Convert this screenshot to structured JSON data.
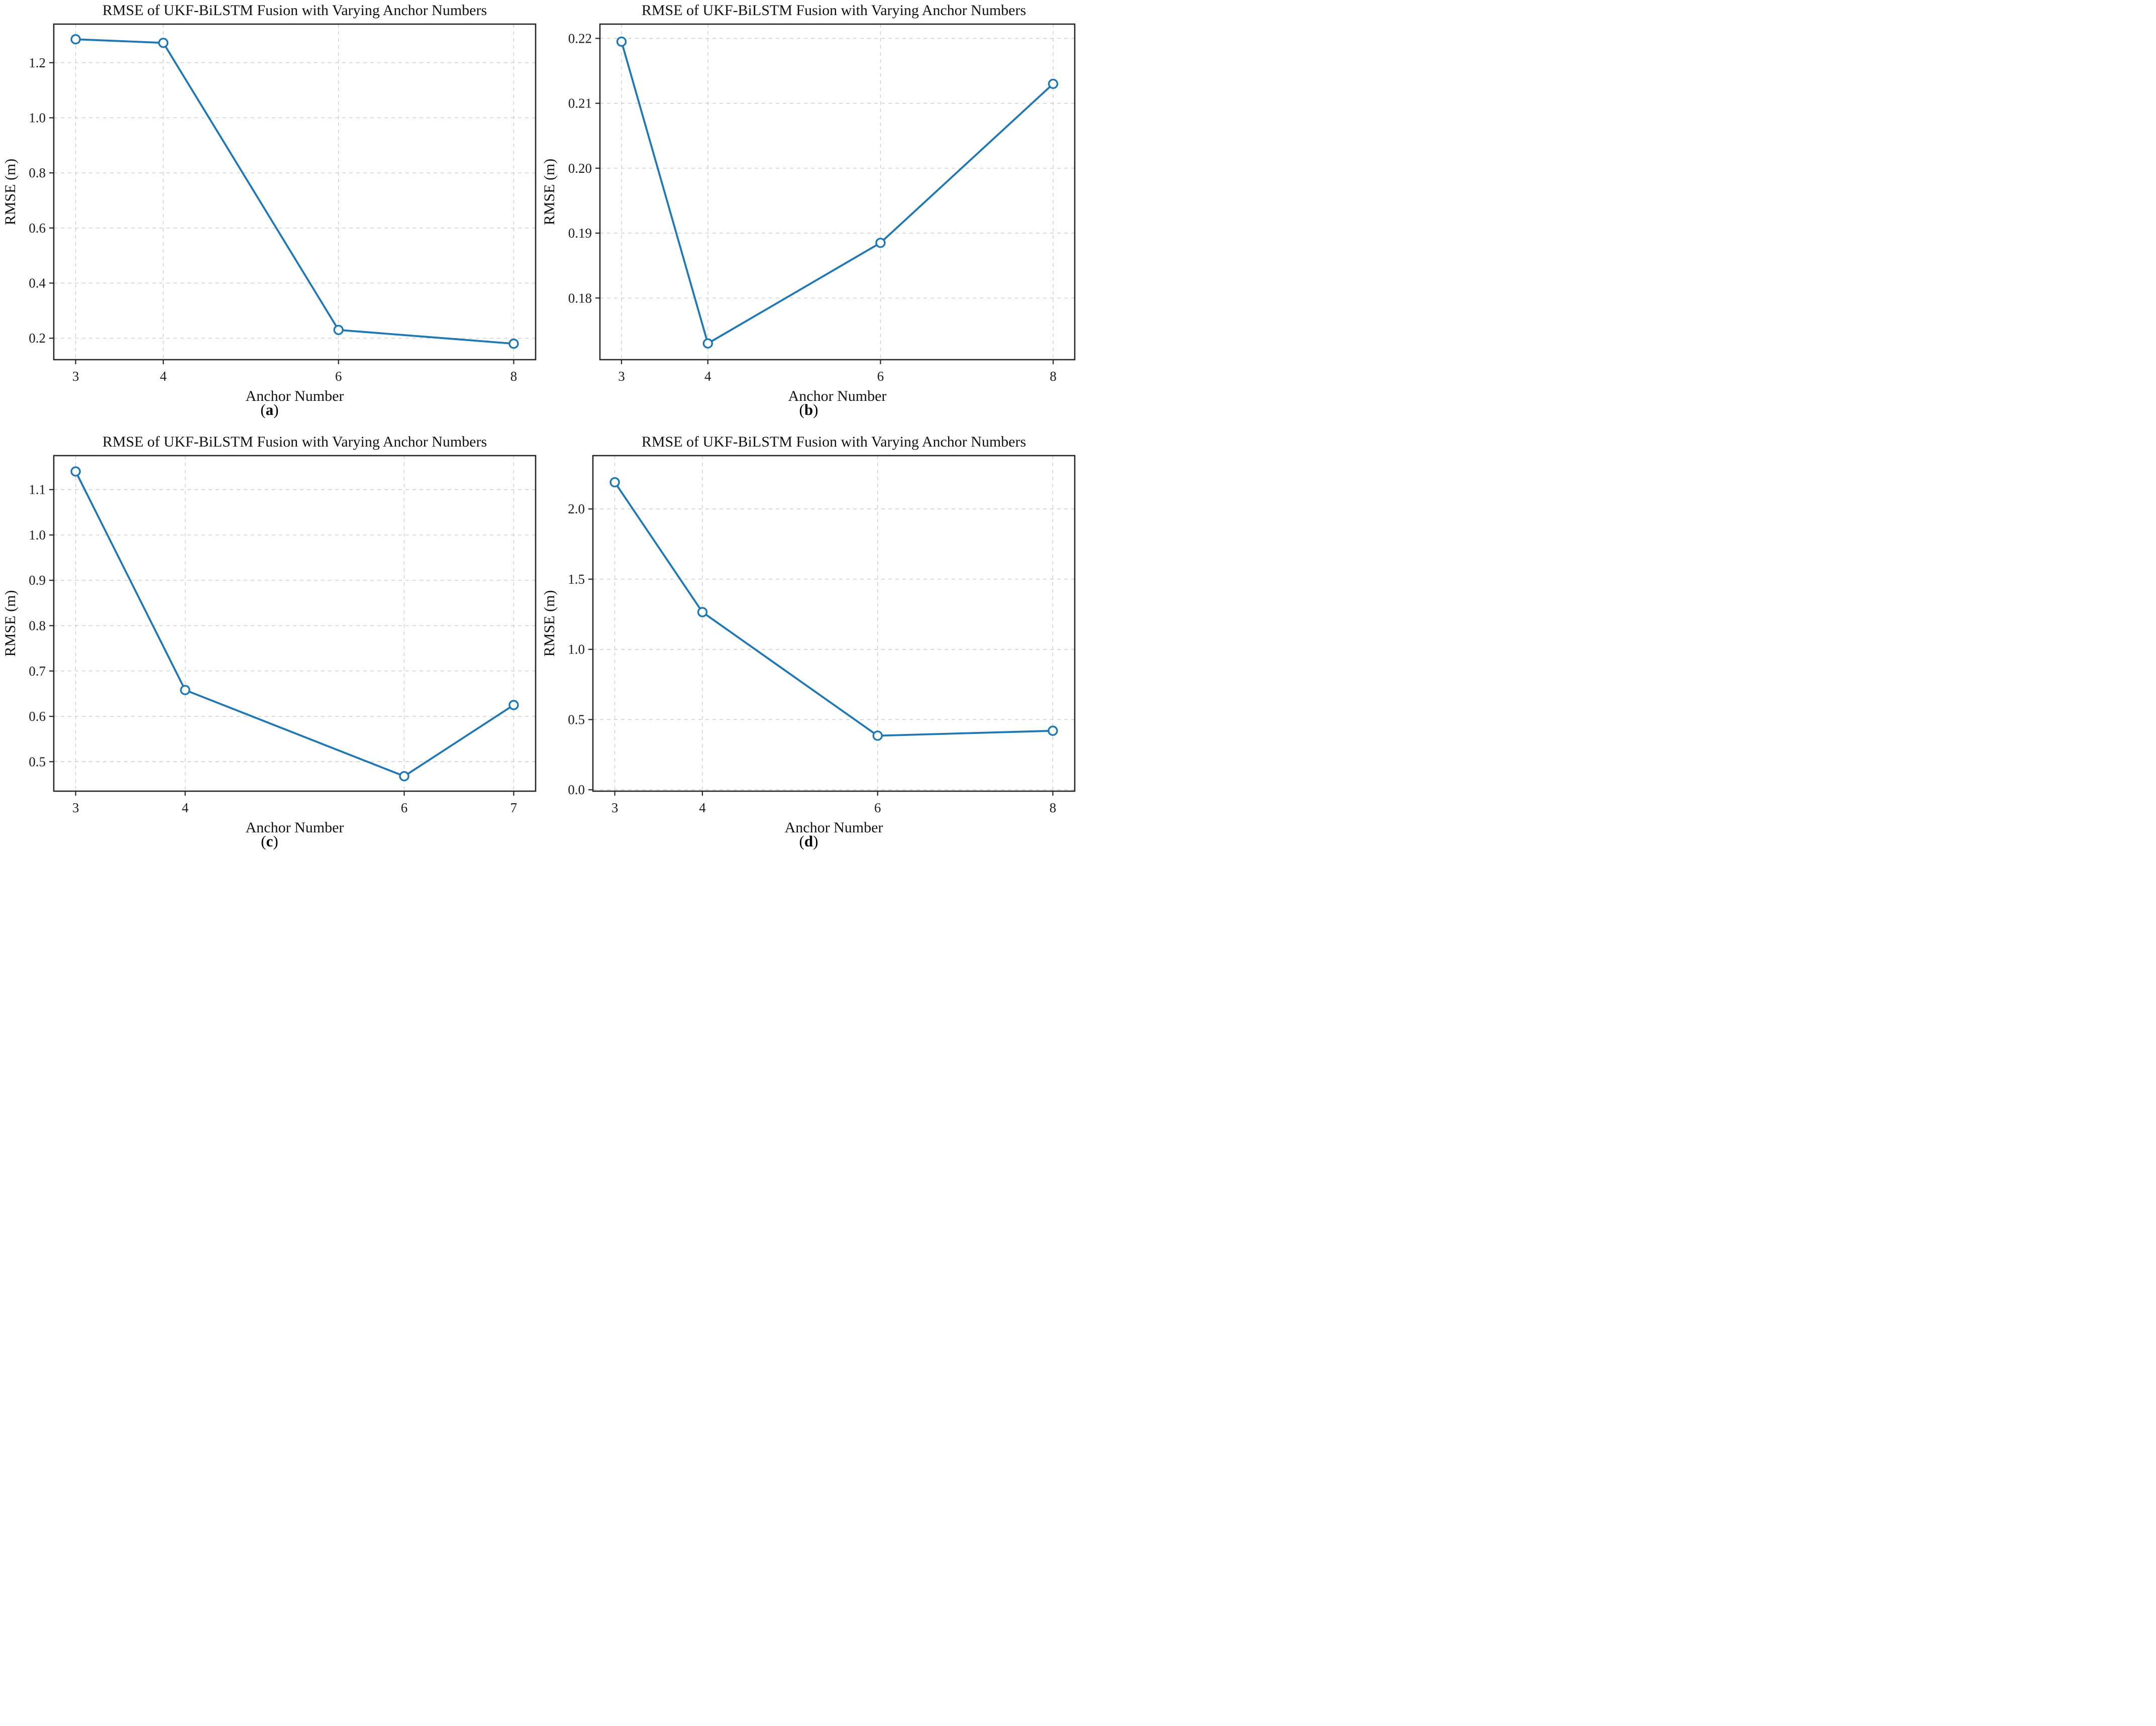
{
  "figure": {
    "background": "#ffffff",
    "accent_color": "#1f77b4"
  },
  "chart_data": [
    {
      "type": "line",
      "title": "RMSE of UKF-BiLSTM Fusion with Varying Anchor Numbers",
      "xlabel": "Anchor Number",
      "ylabel": "RMSE (m)",
      "panel_label_open": "(",
      "panel_letter": "a",
      "panel_label_close": ")",
      "x": [
        3,
        4,
        6,
        8
      ],
      "y": [
        1.285,
        1.272,
        0.23,
        0.18
      ],
      "xticks": [
        3,
        4,
        6,
        8
      ],
      "xtick_labels": [
        "3",
        "4",
        "6",
        "8"
      ],
      "yticks": [
        0.2,
        0.4,
        0.6,
        0.8,
        1.0,
        1.2
      ],
      "ytick_labels": [
        "0.2",
        "0.4",
        "0.6",
        "0.8",
        "1.0",
        "1.2"
      ],
      "xlim": [
        2.75,
        8.25
      ],
      "ylim": [
        0.122,
        1.34
      ],
      "grid": true,
      "legend": null,
      "line_color": "#1f77b4",
      "marker": "circle-open",
      "marker_fill": "#ffffff"
    },
    {
      "type": "line",
      "title": "RMSE of UKF-BiLSTM Fusion with Varying Anchor Numbers",
      "xlabel": "Anchor Number",
      "ylabel": "RMSE (m)",
      "panel_label_open": "(",
      "panel_letter": "b",
      "panel_label_close": ")",
      "x": [
        3,
        4,
        6,
        8
      ],
      "y": [
        0.2195,
        0.173,
        0.1885,
        0.213
      ],
      "xticks": [
        3,
        4,
        6,
        8
      ],
      "xtick_labels": [
        "3",
        "4",
        "6",
        "8"
      ],
      "yticks": [
        0.18,
        0.19,
        0.2,
        0.21,
        0.22
      ],
      "ytick_labels": [
        "0.18",
        "0.19",
        "0.20",
        "0.21",
        "0.22"
      ],
      "xlim": [
        2.75,
        8.25
      ],
      "ylim": [
        0.1705,
        0.2222
      ],
      "grid": true,
      "legend": null,
      "line_color": "#1f77b4",
      "marker": "circle-open",
      "marker_fill": "#ffffff"
    },
    {
      "type": "line",
      "title": "RMSE of UKF-BiLSTM Fusion with Varying Anchor Numbers",
      "xlabel": "Anchor Number",
      "ylabel": "RMSE (m)",
      "panel_label_open": "(",
      "panel_letter": "c",
      "panel_label_close": ")",
      "x": [
        3,
        4,
        6,
        7
      ],
      "y": [
        1.14,
        0.658,
        0.468,
        0.625
      ],
      "xticks": [
        3,
        4,
        6,
        7
      ],
      "xtick_labels": [
        "3",
        "4",
        "6",
        "7"
      ],
      "yticks": [
        0.5,
        0.6,
        0.7,
        0.8,
        0.9,
        1.0,
        1.1
      ],
      "ytick_labels": [
        "0.5",
        "0.6",
        "0.7",
        "0.8",
        "0.9",
        "1.0",
        "1.1"
      ],
      "xlim": [
        2.8,
        7.2
      ],
      "ylim": [
        0.435,
        1.175
      ],
      "grid": true,
      "legend": null,
      "line_color": "#1f77b4",
      "marker": "circle-open",
      "marker_fill": "#ffffff"
    },
    {
      "type": "line",
      "title": "RMSE of UKF-BiLSTM Fusion with Varying Anchor Numbers",
      "xlabel": "Anchor Number",
      "ylabel": "RMSE (m)",
      "panel_label_open": "(",
      "panel_letter": "d",
      "panel_label_close": ")",
      "x": [
        3,
        4,
        6,
        8
      ],
      "y": [
        2.19,
        1.265,
        0.385,
        0.42
      ],
      "xticks": [
        3,
        4,
        6,
        8
      ],
      "xtick_labels": [
        "3",
        "4",
        "6",
        "8"
      ],
      "yticks": [
        0.0,
        0.5,
        1.0,
        1.5,
        2.0
      ],
      "ytick_labels": [
        "0.0",
        "0.5",
        "1.0",
        "1.5",
        "2.0"
      ],
      "xlim": [
        2.75,
        8.25
      ],
      "ylim": [
        -0.01,
        2.38
      ],
      "grid": true,
      "legend": null,
      "line_color": "#1f77b4",
      "marker": "circle-open",
      "marker_fill": "#ffffff"
    }
  ]
}
